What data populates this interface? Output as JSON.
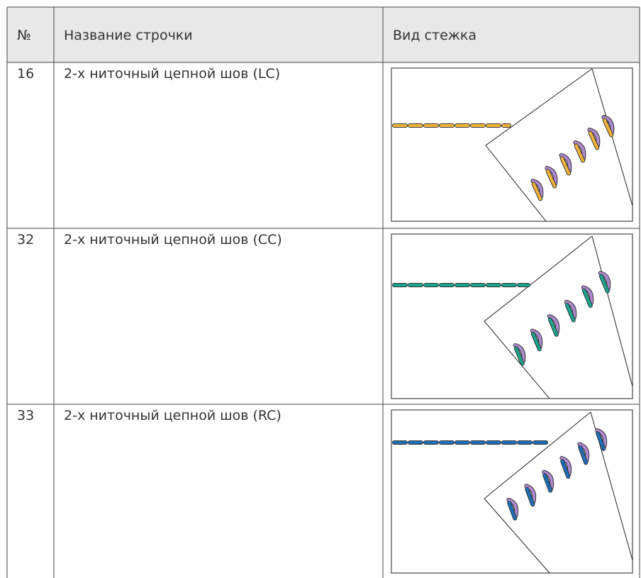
{
  "table": {
    "header": [
      "№",
      "Название строчки",
      "Вид стежка"
    ],
    "rows": [
      [
        16,
        "2-х ниточный цепной шов (LC)"
      ],
      [
        32,
        "2-х ниточный цепной шов (CC)"
      ],
      [
        33,
        "2-х ниточный цепной шов (RC)"
      ]
    ]
  }
}
